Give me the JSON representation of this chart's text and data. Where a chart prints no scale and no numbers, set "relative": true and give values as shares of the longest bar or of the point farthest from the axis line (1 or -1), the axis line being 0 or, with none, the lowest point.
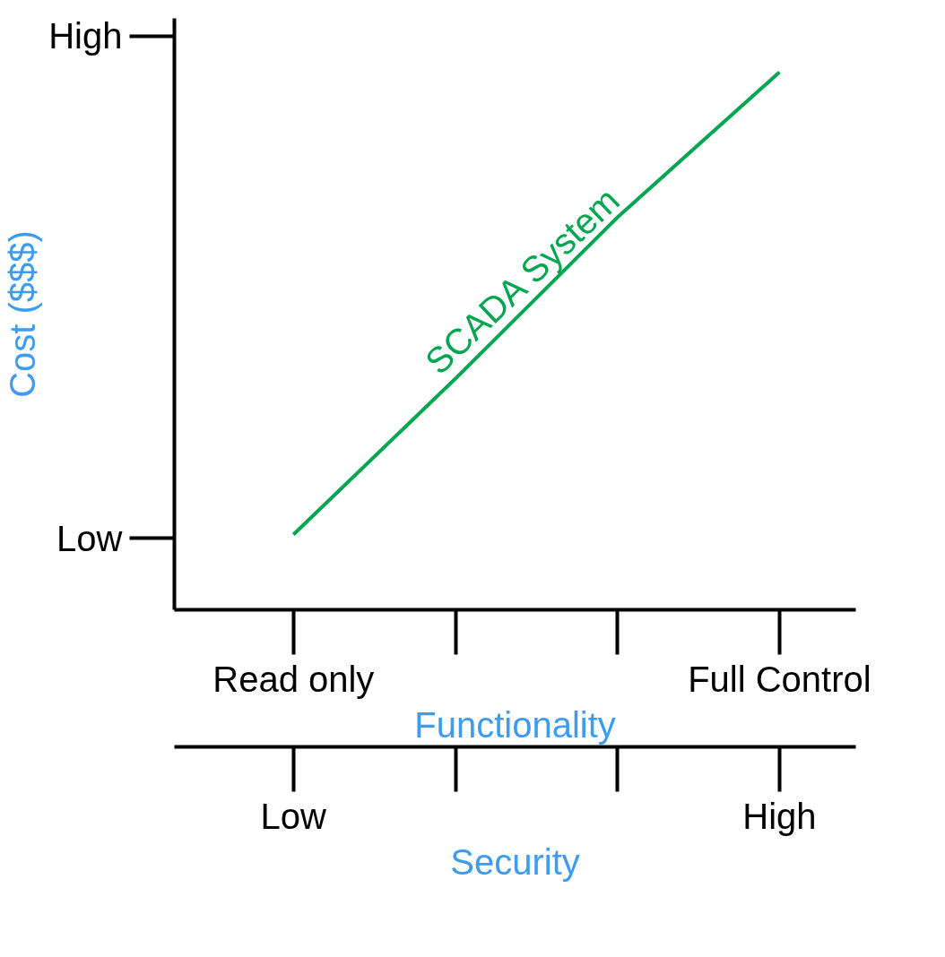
{
  "chart_data": {
    "type": "line",
    "relative": true,
    "xlabel": "Functionality",
    "ylabel": "Cost ($$$)",
    "x2label": "Security",
    "categories": [
      "Read only",
      null,
      null,
      "Full Control"
    ],
    "annotations": [
      "Low",
      "High",
      "Low",
      "High"
    ],
    "series": [
      {
        "name": "SCADA System",
        "color": "#00a650",
        "values": [
          0.14,
          0.43,
          0.73,
          1
        ]
      }
    ],
    "grid": false
  }
}
